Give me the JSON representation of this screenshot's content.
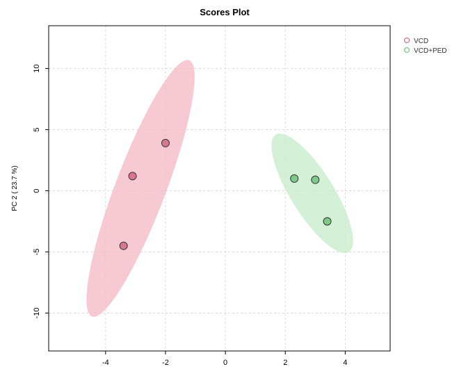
{
  "chart_data": {
    "type": "scatter",
    "title": "Scores Plot",
    "xlabel": "",
    "ylabel": "PC 2 ( 23.7 %)",
    "xlim": [
      -5.9,
      5.5
    ],
    "ylim": [
      -13.1,
      13.5
    ],
    "x_ticks": [
      -4,
      -2,
      0,
      2,
      4
    ],
    "y_ticks": [
      -10,
      -5,
      0,
      5,
      10
    ],
    "grid": true,
    "legend_position": "top-right",
    "series": [
      {
        "name": "VCD",
        "color": "#d9768f",
        "ellipse_color": "#f4b7c4",
        "points": [
          {
            "x": -2.0,
            "y": 3.9
          },
          {
            "x": -3.1,
            "y": 1.2
          },
          {
            "x": -3.4,
            "y": -4.5
          }
        ]
      },
      {
        "name": "VCD+PED",
        "color": "#7ec88a",
        "ellipse_color": "#c6ebc8",
        "points": [
          {
            "x": 2.3,
            "y": 1.0
          },
          {
            "x": 3.0,
            "y": 0.9
          },
          {
            "x": 3.4,
            "y": -2.5
          }
        ]
      }
    ]
  }
}
